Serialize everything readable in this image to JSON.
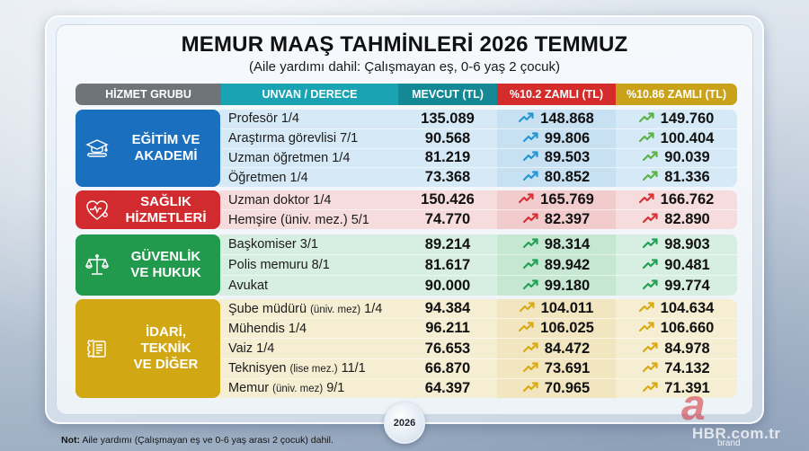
{
  "title": "MEMUR MAAŞ TAHMİNLERİ 2026 TEMMUZ",
  "subtitle": "(Aile yardımı dahil: Çalışmayan eş, 0-6 yaş 2 çocuk)",
  "columns": [
    "HİZMET GRUBU",
    "UNVAN / DERECE",
    "MEVCUT (TL)",
    "%10.2 ZAMLI (TL)",
    "%10.86 ZAMLI (TL)"
  ],
  "colors": {
    "header_group": "#6e7478",
    "header_title": "#1aa4b3",
    "header_current": "#148995",
    "header_raise1": "#d42b2b",
    "header_raise2": "#caa21a"
  },
  "groups": [
    {
      "name": "EĞİTİM VE AKADEMİ",
      "icon": "graduation-cap-icon",
      "color": "#1b6fbf",
      "rows": [
        {
          "title": "Profesör 1/4",
          "current": "135.089",
          "raise_10_2": "148.868",
          "raise_10_86": "149.760"
        },
        {
          "title": "Araştırma görevlisi 7/1",
          "current": "90.568",
          "raise_10_2": "99.806",
          "raise_10_86": "100.404"
        },
        {
          "title": "Uzman öğretmen 1/4",
          "current": "81.219",
          "raise_10_2": "89.503",
          "raise_10_86": "90.039"
        },
        {
          "title": "Öğretmen 1/4",
          "current": "73.368",
          "raise_10_2": "80.852",
          "raise_10_86": "81.336"
        }
      ]
    },
    {
      "name": "SAĞLIK HİZMETLERİ",
      "icon": "heart-stethoscope-icon",
      "color": "#d12a2f",
      "rows": [
        {
          "title": "Uzman doktor 1/4",
          "current": "150.426",
          "raise_10_2": "165.769",
          "raise_10_86": "166.762"
        },
        {
          "title": "Hemşire (üniv. mez.) 5/1",
          "current": "74.770",
          "raise_10_2": "82.397",
          "raise_10_86": "82.890"
        }
      ]
    },
    {
      "name": "GÜVENLİK VE HUKUK",
      "icon": "scales-icon",
      "color": "#229a4e",
      "rows": [
        {
          "title": "Başkomiser 3/1",
          "current": "89.214",
          "raise_10_2": "98.314",
          "raise_10_86": "98.903"
        },
        {
          "title": "Polis memuru 8/1",
          "current": "81.617",
          "raise_10_2": "89.942",
          "raise_10_86": "90.481"
        },
        {
          "title": "Avukat",
          "current": "90.000",
          "raise_10_2": "99.180",
          "raise_10_86": "99.774"
        }
      ]
    },
    {
      "name": "İDARİ, TEKNİK VE DİĞER",
      "icon": "gear-document-icon",
      "color": "#d2a714",
      "rows": [
        {
          "title": "Şube müdürü",
          "title_note": "(üniv. mez)",
          "title_suffix": "1/4",
          "current": "94.384",
          "raise_10_2": "104.011",
          "raise_10_86": "104.634"
        },
        {
          "title": "Mühendis 1/4",
          "title_note": "",
          "title_suffix": "",
          "current": "96.211",
          "raise_10_2": "106.025",
          "raise_10_86": "106.660"
        },
        {
          "title": "Vaiz 1/4",
          "title_note": "",
          "title_suffix": "",
          "current": "76.653",
          "raise_10_2": "84.472",
          "raise_10_86": "84.978"
        },
        {
          "title": "Teknisyen",
          "title_note": "(lise mez.)",
          "title_suffix": "11/1",
          "current": "66.870",
          "raise_10_2": "73.691",
          "raise_10_86": "74.132"
        },
        {
          "title": "Memur",
          "title_note": "(üniv. mez)",
          "title_suffix": "9/1",
          "current": "64.397",
          "raise_10_2": "70.965",
          "raise_10_86": "71.391"
        }
      ]
    }
  ],
  "badge_lines": {
    "edu": [
      "EĞİTİM VE",
      "AKADEMİ"
    ],
    "health": [
      "SAĞLIK",
      "HİZMETLERİ"
    ],
    "sec": [
      "GÜVENLİK",
      "VE HUKUK"
    ],
    "adm": [
      "İDARİ,",
      "TEKNİK",
      "VE DİĞER"
    ]
  },
  "clock_year": "2026",
  "note": {
    "label": "Not:",
    "text": " Aile yardımı (Çalışmayan eş ve 0-6 yaş arası 2 çocuk) dahil."
  },
  "watermark": {
    "logo": "a",
    "site": "HBR.com.tr",
    "brand": "brand"
  }
}
